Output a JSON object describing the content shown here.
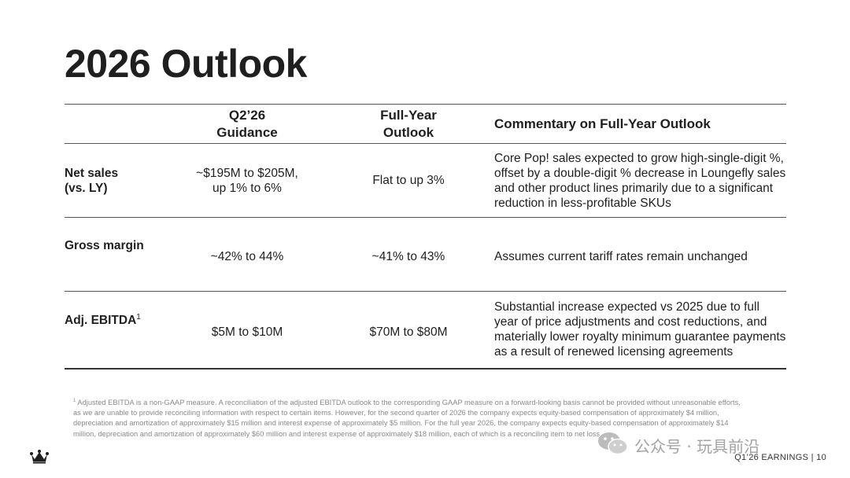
{
  "title": "2026 Outlook",
  "table": {
    "headers": {
      "label": "",
      "q2_line1": "Q2’26",
      "q2_line2": "Guidance",
      "fy_line1": "Full-Year",
      "fy_line2": "Outlook",
      "commentary": "Commentary on Full-Year Outlook"
    },
    "rows": [
      {
        "label_line1": "Net sales",
        "label_line2": "(vs. LY)",
        "q2_line1": "~$195M to $205M,",
        "q2_line2": "up 1% to 6%",
        "fy": "Flat to up 3%",
        "commentary": "Core Pop! sales expected to grow high-single-digit %, offset by a double-digit % decrease in Loungefly sales and other product lines primarily due to a significant reduction in less-profitable SKUs"
      },
      {
        "label": "Gross margin",
        "q2": "~42% to 44%",
        "fy": "~41% to 43%",
        "commentary": "Assumes current tariff rates remain unchanged"
      },
      {
        "label": "Adj. EBITDA",
        "label_sup": "1",
        "q2": "$5M to $10M",
        "fy": "$70M to $80M",
        "commentary": "Substantial increase expected vs 2025 due to full year of price adjustments and cost reductions, and materially lower royalty minimum guarantee payments as a result of renewed licensing agreements"
      }
    ]
  },
  "footnote": {
    "marker": "1",
    "text": "Adjusted EBITDA is a non-GAAP measure. A reconciliation of the adjusted EBITDA outlook to the corresponding GAAP measure on a forward-looking basis cannot be provided without unreasonable efforts, as we are unable to provide reconciling information with respect to certain items. However, for the second quarter of 2026 the company expects equity-based compensation of approximately $4 million, depreciation and amortization of approximately $15 million and interest expense of approximately $5 million.  For the full year 2026, the company expects equity-based compensation of approximately $14 million, depreciation and amortization of approximately $60 million and interest expense of approximately $18 million, each of which is a reconciling item to net loss."
  },
  "watermark": {
    "text": "公众号 · 玩具前沿",
    "icon": "wechat-icon"
  },
  "footer": {
    "label": "Q1’26 EARNINGS",
    "separator": "|",
    "page": "10"
  },
  "logo": {
    "icon": "crown-icon"
  }
}
